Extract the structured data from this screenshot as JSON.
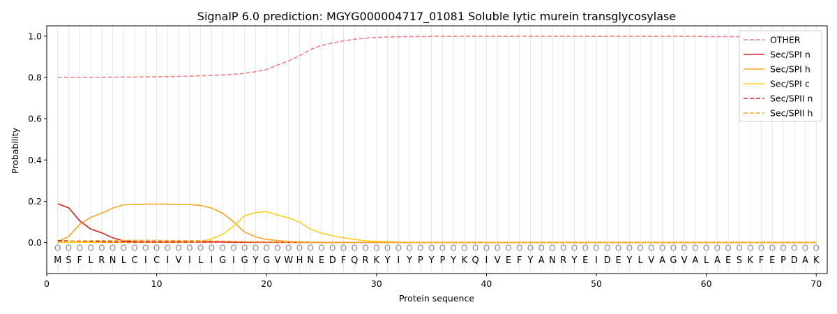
{
  "chart_data": {
    "type": "line",
    "title": "SignalP 6.0 prediction: MGYG000004717_01081 Soluble lytic murein transglycosylase",
    "xlabel": "Protein sequence",
    "ylabel": "Probability",
    "xlim": [
      0,
      71
    ],
    "ylim": [
      -0.15,
      1.05
    ],
    "x_ticks": [
      0,
      10,
      20,
      30,
      40,
      50,
      60,
      70
    ],
    "y_ticks": [
      0.0,
      0.2,
      0.4,
      0.6,
      0.8,
      1.0
    ],
    "x_tick_labels": [
      "0",
      "10",
      "20",
      "30",
      "40",
      "50",
      "60",
      "70"
    ],
    "y_tick_labels": [
      "0.0",
      "0.2",
      "0.4",
      "0.6",
      "0.8",
      "1.0"
    ],
    "grid": "vertical lines at each residue",
    "legend_position": "top-right",
    "sequence": [
      "M",
      "S",
      "F",
      "L",
      "R",
      "N",
      "L",
      "C",
      "I",
      "C",
      "I",
      "V",
      "I",
      "L",
      "I",
      "G",
      "I",
      "G",
      "Y",
      "G",
      "V",
      "W",
      "H",
      "N",
      "E",
      "D",
      "F",
      "Q",
      "R",
      "K",
      "Y",
      "I",
      "Y",
      "P",
      "Y",
      "P",
      "Y",
      "K",
      "Q",
      "I",
      "V",
      "E",
      "F",
      "Y",
      "A",
      "N",
      "R",
      "Y",
      "E",
      "I",
      "D",
      "E",
      "Y",
      "L",
      "V",
      "A",
      "G",
      "V",
      "A",
      "L",
      "A",
      "E",
      "S",
      "K",
      "F",
      "E",
      "P",
      "D",
      "A",
      "K"
    ],
    "marker_symbol": "O",
    "x": [
      1,
      2,
      3,
      4,
      5,
      6,
      7,
      8,
      9,
      10,
      11,
      12,
      13,
      14,
      15,
      16,
      17,
      18,
      19,
      20,
      21,
      22,
      23,
      24,
      25,
      26,
      27,
      28,
      29,
      30,
      31,
      32,
      33,
      34,
      35,
      36,
      37,
      38,
      39,
      40,
      41,
      42,
      43,
      44,
      45,
      46,
      47,
      48,
      49,
      50,
      51,
      52,
      53,
      54,
      55,
      56,
      57,
      58,
      59,
      60,
      61,
      62,
      63,
      64,
      65,
      66,
      67,
      68,
      69,
      70
    ],
    "series": [
      {
        "name": "OTHER",
        "color": "#f08080",
        "dash": "dashed",
        "values": [
          0.8,
          0.8,
          0.8,
          0.8,
          0.801,
          0.801,
          0.802,
          0.802,
          0.803,
          0.803,
          0.804,
          0.805,
          0.806,
          0.808,
          0.81,
          0.812,
          0.815,
          0.82,
          0.828,
          0.838,
          0.86,
          0.88,
          0.905,
          0.935,
          0.955,
          0.967,
          0.977,
          0.985,
          0.99,
          0.994,
          0.996,
          0.997,
          0.998,
          0.998,
          0.999,
          0.999,
          0.999,
          0.999,
          0.999,
          0.999,
          0.999,
          0.999,
          0.999,
          0.999,
          0.999,
          0.999,
          0.999,
          0.999,
          0.999,
          0.999,
          0.999,
          0.999,
          0.999,
          0.999,
          0.999,
          0.999,
          0.999,
          0.999,
          0.999,
          0.998,
          0.998,
          0.998,
          0.997,
          0.997,
          0.996,
          0.996,
          0.995,
          0.995,
          0.994,
          0.993
        ]
      },
      {
        "name": "Sec/SPI n",
        "color": "#e31a1c",
        "dash": "solid",
        "values": [
          0.188,
          0.168,
          0.105,
          0.066,
          0.047,
          0.023,
          0.008,
          0.004,
          0.003,
          0.003,
          0.003,
          0.003,
          0.003,
          0.003,
          0.003,
          0.003,
          0.002,
          0.002,
          0.002,
          0.002,
          0.001,
          0.001,
          0.001,
          0.001,
          0.001,
          0.001,
          0.001,
          0.001,
          0.001,
          0.001,
          0.001,
          0.001,
          0.001,
          0.001,
          0.001,
          0.001,
          0.001,
          0.001,
          0.001,
          0.001,
          0.001,
          0.001,
          0.001,
          0.001,
          0.001,
          0.001,
          0.001,
          0.001,
          0.001,
          0.001,
          0.001,
          0.001,
          0.001,
          0.001,
          0.001,
          0.001,
          0.001,
          0.001,
          0.001,
          0.001,
          0.001,
          0.001,
          0.001,
          0.001,
          0.001,
          0.001,
          0.001,
          0.001,
          0.001,
          0.001
        ]
      },
      {
        "name": "Sec/SPI h",
        "color": "#f5a623",
        "dash": "solid",
        "values": [
          0.005,
          0.03,
          0.088,
          0.122,
          0.142,
          0.167,
          0.183,
          0.185,
          0.186,
          0.186,
          0.186,
          0.185,
          0.184,
          0.18,
          0.167,
          0.142,
          0.1,
          0.05,
          0.028,
          0.015,
          0.01,
          0.006,
          0.003,
          0.002,
          0.001,
          0.001,
          0.001,
          0.001,
          0.001,
          0.001,
          0.001,
          0.001,
          0.001,
          0.001,
          0.001,
          0.001,
          0.001,
          0.001,
          0.001,
          0.001,
          0.001,
          0.001,
          0.001,
          0.001,
          0.001,
          0.001,
          0.001,
          0.001,
          0.001,
          0.001,
          0.001,
          0.001,
          0.001,
          0.001,
          0.001,
          0.001,
          0.001,
          0.001,
          0.001,
          0.001,
          0.001,
          0.001,
          0.001,
          0.001,
          0.001,
          0.001,
          0.001,
          0.001,
          0.001,
          0.001
        ]
      },
      {
        "name": "Sec/SPI c",
        "color": "#ffd21a",
        "dash": "solid",
        "values": [
          0.001,
          0.001,
          0.001,
          0.001,
          0.001,
          0.001,
          0.001,
          0.001,
          0.001,
          0.001,
          0.001,
          0.001,
          0.002,
          0.005,
          0.018,
          0.04,
          0.08,
          0.13,
          0.145,
          0.15,
          0.133,
          0.12,
          0.098,
          0.065,
          0.045,
          0.033,
          0.023,
          0.015,
          0.009,
          0.006,
          0.004,
          0.002,
          0.001,
          0.001,
          0.001,
          0.001,
          0.001,
          0.001,
          0.001,
          0.001,
          0.001,
          0.001,
          0.001,
          0.001,
          0.001,
          0.001,
          0.001,
          0.001,
          0.001,
          0.001,
          0.001,
          0.001,
          0.001,
          0.001,
          0.001,
          0.001,
          0.001,
          0.001,
          0.001,
          0.001,
          0.001,
          0.001,
          0.001,
          0.001,
          0.001,
          0.001,
          0.001,
          0.001,
          0.001,
          0.001
        ]
      },
      {
        "name": "Sec/SPII n",
        "color": "#e31a1c",
        "dash": "dashed",
        "values": [
          0.01,
          0.008,
          0.006,
          0.005,
          0.004,
          0.003,
          0.003,
          0.002,
          0.002,
          0.002,
          0.002,
          0.002,
          0.002,
          0.002,
          0.002,
          0.002,
          0.001,
          0.001,
          0.001,
          0.001,
          0.001,
          0.001,
          0.001,
          0.001,
          0.001,
          0.001,
          0.001,
          0.001,
          0.001,
          0.001,
          0.001,
          0.001,
          0.001,
          0.001,
          0.001,
          0.001,
          0.001,
          0.001,
          0.001,
          0.001,
          0.001,
          0.001,
          0.001,
          0.001,
          0.001,
          0.001,
          0.001,
          0.001,
          0.001,
          0.001,
          0.001,
          0.001,
          0.001,
          0.001,
          0.001,
          0.001,
          0.001,
          0.001,
          0.001,
          0.001,
          0.001,
          0.001,
          0.001,
          0.001,
          0.001,
          0.001,
          0.001,
          0.001,
          0.001,
          0.001
        ]
      },
      {
        "name": "Sec/SPII h",
        "color": "#f5a623",
        "dash": "dashed",
        "values": [
          0.004,
          0.006,
          0.008,
          0.009,
          0.01,
          0.01,
          0.011,
          0.011,
          0.011,
          0.011,
          0.01,
          0.01,
          0.01,
          0.009,
          0.008,
          0.007,
          0.006,
          0.004,
          0.003,
          0.002,
          0.002,
          0.001,
          0.001,
          0.001,
          0.001,
          0.001,
          0.001,
          0.001,
          0.001,
          0.001,
          0.001,
          0.001,
          0.001,
          0.001,
          0.001,
          0.001,
          0.001,
          0.001,
          0.001,
          0.001,
          0.001,
          0.001,
          0.001,
          0.001,
          0.001,
          0.001,
          0.001,
          0.001,
          0.001,
          0.001,
          0.001,
          0.001,
          0.001,
          0.001,
          0.001,
          0.001,
          0.001,
          0.001,
          0.001,
          0.001,
          0.001,
          0.001,
          0.001,
          0.001,
          0.001,
          0.001,
          0.001,
          0.001,
          0.001,
          0.001
        ]
      }
    ]
  }
}
